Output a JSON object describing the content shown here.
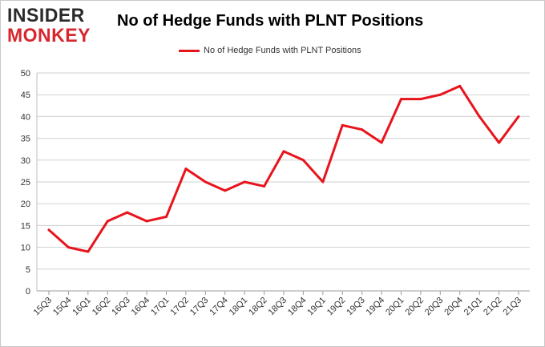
{
  "brand": {
    "logo_top": "INSIDER",
    "logo_bottom": "MONKEY"
  },
  "colors": {
    "line": "#e8141c",
    "grid": "#d0d0d0",
    "logo_dark": "#2a2a2a",
    "logo_red": "#d7262e"
  },
  "chart_data": {
    "type": "line",
    "title": "No of Hedge Funds with PLNT Positions",
    "xlabel": "",
    "ylabel": "",
    "ylim": [
      0,
      50
    ],
    "yticks": [
      0,
      5,
      10,
      15,
      20,
      25,
      30,
      35,
      40,
      45,
      50
    ],
    "grid": true,
    "legend_placement": "top-center",
    "categories": [
      "15Q3",
      "15Q4",
      "16Q1",
      "16Q2",
      "16Q3",
      "16Q4",
      "17Q1",
      "17Q2",
      "17Q3",
      "17Q4",
      "18Q1",
      "18Q2",
      "18Q3",
      "18Q4",
      "19Q1",
      "19Q2",
      "19Q3",
      "19Q4",
      "20Q1",
      "20Q2",
      "20Q3",
      "20Q4",
      "21Q1",
      "21Q2",
      "21Q3"
    ],
    "series": [
      {
        "name": "No of Hedge Funds with PLNT Positions",
        "values": [
          14,
          10,
          9,
          16,
          18,
          16,
          17,
          28,
          25,
          23,
          25,
          24,
          32,
          30,
          25,
          38,
          37,
          34,
          44,
          44,
          45,
          47,
          40,
          34,
          40
        ]
      }
    ]
  }
}
